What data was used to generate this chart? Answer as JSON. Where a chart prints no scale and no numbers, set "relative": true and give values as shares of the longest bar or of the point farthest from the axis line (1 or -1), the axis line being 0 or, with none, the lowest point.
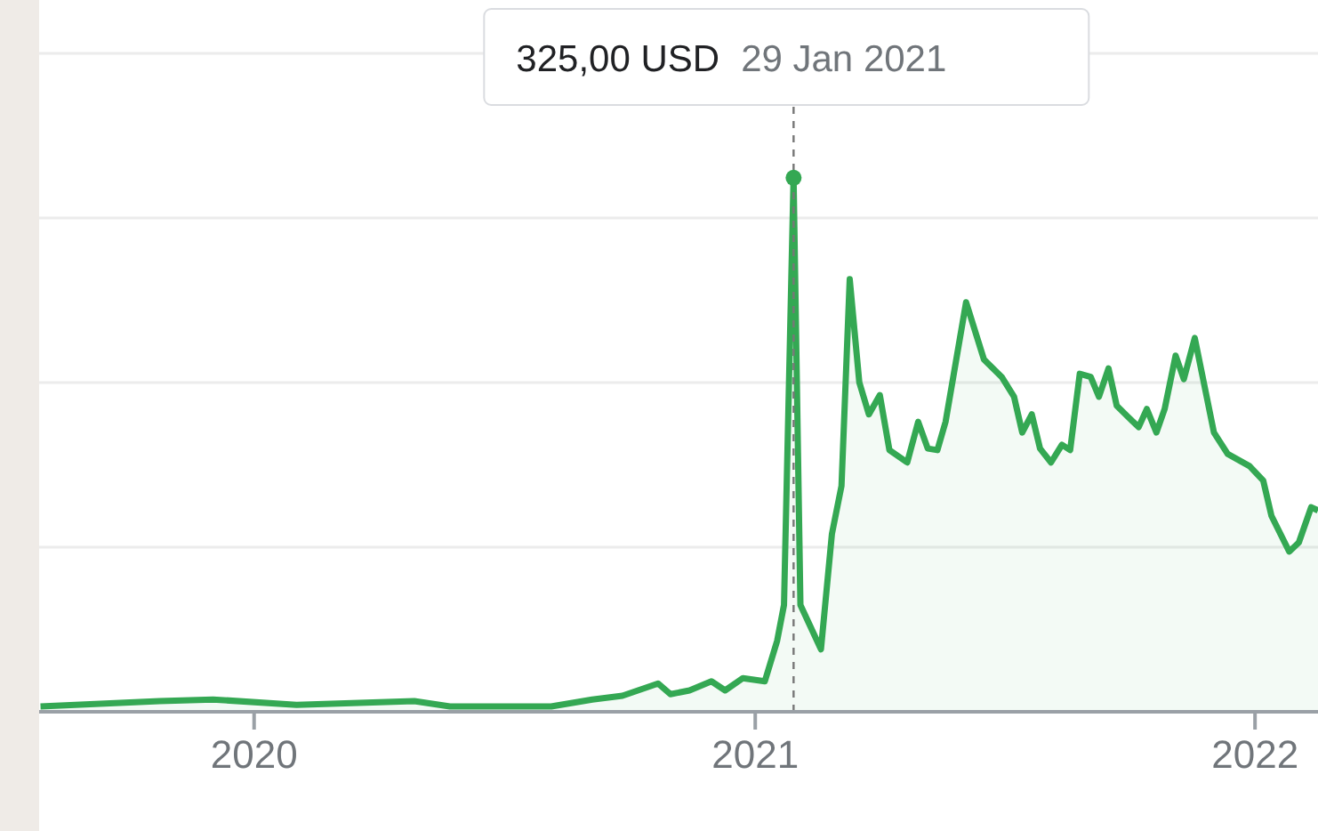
{
  "chart_data": {
    "type": "area",
    "relative": true,
    "grid": "y",
    "marker": "none",
    "line_style": "solid",
    "xlim": [
      "2019-07-28",
      "2022-02-16"
    ],
    "xticks": [
      "2020",
      "2021",
      "2022"
    ],
    "x": [
      "2019-07-29",
      "2019-10-24",
      "2019-12-02",
      "2020-02-01",
      "2020-04-27",
      "2020-05-23",
      "2020-08-05",
      "2020-09-04",
      "2020-09-26",
      "2020-10-22",
      "2020-10-31",
      "2020-11-14",
      "2020-11-30",
      "2020-12-10",
      "2020-12-23",
      "2021-01-08",
      "2021-01-17",
      "2021-01-22",
      "2021-01-29",
      "2021-02-03",
      "2021-02-18",
      "2021-02-26",
      "2021-03-05",
      "2021-03-11",
      "2021-03-18",
      "2021-03-25",
      "2021-04-02",
      "2021-04-09",
      "2021-04-22",
      "2021-04-30",
      "2021-05-07",
      "2021-05-14",
      "2021-05-20",
      "2021-06-04",
      "2021-06-17",
      "2021-06-30",
      "2021-07-09",
      "2021-07-15",
      "2021-07-22",
      "2021-07-28",
      "2021-08-05",
      "2021-08-13",
      "2021-08-19",
      "2021-08-26",
      "2021-09-03",
      "2021-09-09",
      "2021-09-16",
      "2021-09-22",
      "2021-10-08",
      "2021-10-14",
      "2021-10-21",
      "2021-10-27",
      "2021-11-04",
      "2021-11-10",
      "2021-11-18",
      "2021-12-02",
      "2021-12-12",
      "2021-12-28",
      "2022-01-07",
      "2022-01-13",
      "2022-01-26",
      "2022-02-02",
      "2022-02-11",
      "2022-02-16"
    ],
    "series": [
      {
        "color": "#34a853",
        "values": [
          0.01,
          0.02,
          0.023,
          0.013,
          0.02,
          0.01,
          0.01,
          0.023,
          0.03,
          0.053,
          0.033,
          0.04,
          0.057,
          0.04,
          0.063,
          0.057,
          0.133,
          0.2,
          1,
          0.2,
          0.117,
          0.333,
          0.423,
          0.81,
          0.617,
          0.557,
          0.593,
          0.49,
          0.467,
          0.543,
          0.493,
          0.49,
          0.543,
          0.767,
          0.66,
          0.627,
          0.59,
          0.523,
          0.557,
          0.493,
          0.467,
          0.5,
          0.49,
          0.633,
          0.627,
          0.59,
          0.643,
          0.573,
          0.533,
          0.567,
          0.523,
          0.567,
          0.667,
          0.623,
          0.7,
          0.523,
          0.483,
          0.46,
          0.433,
          0.367,
          0.3,
          0.317,
          0.383,
          0.377
        ]
      },
      {
        "type": "scatter",
        "color": "#34a853",
        "marker": "circle",
        "x": [
          "2021-01-29"
        ],
        "values": [
          1
        ]
      }
    ],
    "ref_lines": [
      {
        "axis": "x",
        "value": "2021-01-29",
        "color": "#777777",
        "line_style": "dashed"
      }
    ],
    "annotations": [
      "325,00 USD",
      "29 Jan 2021"
    ]
  }
}
